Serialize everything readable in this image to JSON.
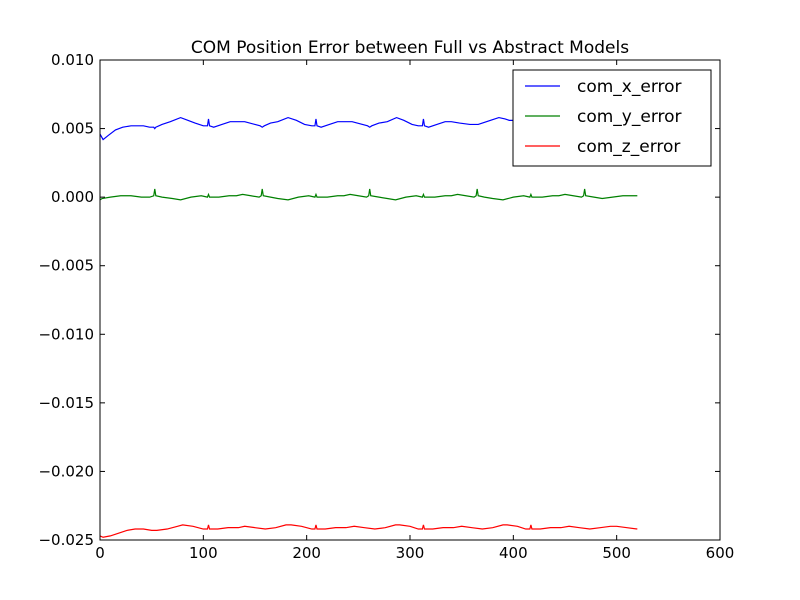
{
  "chart_data": {
    "type": "line",
    "title": "COM Position Error between Full vs Abstract Models",
    "xlabel": "",
    "ylabel": "",
    "xlim": [
      0,
      600
    ],
    "ylim": [
      -0.025,
      0.01
    ],
    "xticks": [
      0,
      100,
      200,
      300,
      400,
      500,
      600
    ],
    "xtick_labels": [
      "0",
      "100",
      "200",
      "300",
      "400",
      "500",
      "600"
    ],
    "yticks": [
      0.01,
      0.005,
      0.0,
      -0.005,
      -0.01,
      -0.015,
      -0.02,
      -0.025
    ],
    "ytick_labels": [
      "0.010",
      "0.005",
      "0.000",
      "−0.005",
      "−0.010",
      "−0.015",
      "−0.020",
      "−0.025"
    ],
    "grid": false,
    "legend_position": "top-right",
    "series": [
      {
        "name": "com_x_error",
        "color": "#0000ff",
        "x": [
          0,
          3,
          8,
          15,
          22,
          30,
          36,
          42,
          48,
          52,
          53,
          54,
          60,
          68,
          78,
          85,
          92,
          100,
          104,
          105,
          106,
          110,
          118,
          126,
          132,
          140,
          150,
          155,
          157,
          159,
          165,
          172,
          182,
          190,
          198,
          205,
          208,
          209,
          210,
          214,
          222,
          230,
          236,
          244,
          254,
          259,
          261,
          263,
          270,
          278,
          287,
          294,
          302,
          308,
          312,
          313,
          314,
          318,
          326,
          334,
          340,
          348,
          358,
          364,
          366,
          370,
          378,
          386,
          392,
          396,
          400
        ],
        "y": [
          0.0046,
          0.0042,
          0.0045,
          0.0049,
          0.0051,
          0.0052,
          0.0052,
          0.0052,
          0.0051,
          0.0051,
          0.005,
          0.0051,
          0.0053,
          0.0055,
          0.0058,
          0.0056,
          0.0054,
          0.0052,
          0.0052,
          0.0057,
          0.0052,
          0.0051,
          0.0053,
          0.0055,
          0.0055,
          0.0055,
          0.0053,
          0.0052,
          0.0051,
          0.0052,
          0.0054,
          0.0055,
          0.0058,
          0.0056,
          0.0053,
          0.0052,
          0.0052,
          0.0057,
          0.0052,
          0.0051,
          0.0053,
          0.0055,
          0.0055,
          0.0055,
          0.0053,
          0.0052,
          0.0051,
          0.0052,
          0.0054,
          0.0055,
          0.0058,
          0.0056,
          0.0053,
          0.0052,
          0.0052,
          0.0057,
          0.0052,
          0.0051,
          0.0053,
          0.0055,
          0.0055,
          0.0054,
          0.0053,
          0.0053,
          0.0053,
          0.0054,
          0.0056,
          0.0058,
          0.0057,
          0.0056,
          0.0056
        ]
      },
      {
        "name": "com_y_error",
        "color": "#008000",
        "x": [
          0,
          2,
          10,
          20,
          30,
          40,
          48,
          52,
          53,
          54,
          60,
          70,
          78,
          88,
          98,
          104,
          105,
          106,
          115,
          125,
          132,
          138,
          146,
          154,
          156,
          157,
          158,
          165,
          172,
          182,
          192,
          202,
          208,
          209,
          210,
          220,
          230,
          236,
          242,
          250,
          258,
          260,
          261,
          262,
          270,
          278,
          286,
          296,
          306,
          312,
          313,
          314,
          324,
          334,
          340,
          346,
          354,
          362,
          364,
          365,
          366,
          372,
          380,
          390,
          400,
          410,
          416,
          417,
          418,
          428,
          438,
          444,
          450,
          458,
          466,
          468,
          469,
          470,
          478,
          486,
          496,
          506,
          514,
          520
        ],
        "y": [
          -0.0002,
          -0.0001,
          0.0,
          0.0001,
          0.0001,
          0.0,
          0.0,
          0.0001,
          0.0006,
          0.0001,
          0.0,
          -0.0001,
          -0.0002,
          0.0,
          0.0001,
          0.0,
          0.0002,
          0.0,
          0.0,
          0.0001,
          0.0001,
          0.0002,
          0.0001,
          0.0,
          0.0001,
          0.0006,
          0.0001,
          0.0,
          -0.0001,
          -0.0002,
          0.0,
          0.0001,
          0.0,
          0.0002,
          0.0,
          0.0,
          0.0001,
          0.0001,
          0.0002,
          0.0001,
          0.0,
          0.0001,
          0.0006,
          0.0001,
          0.0,
          -0.0001,
          -0.0002,
          0.0,
          0.0001,
          0.0,
          0.0002,
          0.0,
          0.0,
          0.0001,
          0.0001,
          0.0002,
          0.0001,
          0.0,
          0.0001,
          0.0006,
          0.0001,
          0.0,
          -0.0001,
          -0.0002,
          0.0,
          0.0001,
          0.0,
          0.0002,
          0.0,
          0.0,
          0.0001,
          0.0001,
          0.0002,
          0.0001,
          0.0,
          0.0001,
          0.0006,
          0.0001,
          0.0,
          -0.0001,
          0.0,
          0.0001,
          0.0001,
          0.0001
        ]
      },
      {
        "name": "com_z_error",
        "color": "#ff0000",
        "x": [
          0,
          3,
          10,
          18,
          26,
          34,
          42,
          50,
          55,
          65,
          75,
          80,
          90,
          100,
          104,
          105,
          106,
          114,
          124,
          134,
          140,
          150,
          160,
          170,
          180,
          185,
          195,
          205,
          208,
          209,
          210,
          218,
          228,
          238,
          246,
          256,
          266,
          276,
          286,
          290,
          300,
          308,
          312,
          313,
          314,
          322,
          332,
          342,
          350,
          360,
          370,
          380,
          390,
          394,
          404,
          412,
          416,
          417,
          418,
          426,
          436,
          446,
          454,
          464,
          474,
          484,
          494,
          500,
          510,
          520
        ],
        "y": [
          -0.0247,
          -0.0248,
          -0.0247,
          -0.0245,
          -0.0243,
          -0.0242,
          -0.0242,
          -0.0243,
          -0.0243,
          -0.0242,
          -0.024,
          -0.0239,
          -0.024,
          -0.0242,
          -0.0242,
          -0.0239,
          -0.0242,
          -0.0242,
          -0.0241,
          -0.0241,
          -0.024,
          -0.0241,
          -0.0242,
          -0.0241,
          -0.0239,
          -0.0239,
          -0.024,
          -0.0242,
          -0.0242,
          -0.0239,
          -0.0242,
          -0.0242,
          -0.0241,
          -0.0241,
          -0.024,
          -0.0241,
          -0.0242,
          -0.0241,
          -0.0239,
          -0.0239,
          -0.024,
          -0.0242,
          -0.0242,
          -0.0239,
          -0.0242,
          -0.0242,
          -0.0241,
          -0.0241,
          -0.024,
          -0.0241,
          -0.0242,
          -0.0241,
          -0.0239,
          -0.0239,
          -0.024,
          -0.0242,
          -0.0242,
          -0.0239,
          -0.0242,
          -0.0242,
          -0.0241,
          -0.0241,
          -0.024,
          -0.0241,
          -0.0242,
          -0.0241,
          -0.024,
          -0.024,
          -0.0241,
          -0.0242
        ]
      }
    ]
  }
}
